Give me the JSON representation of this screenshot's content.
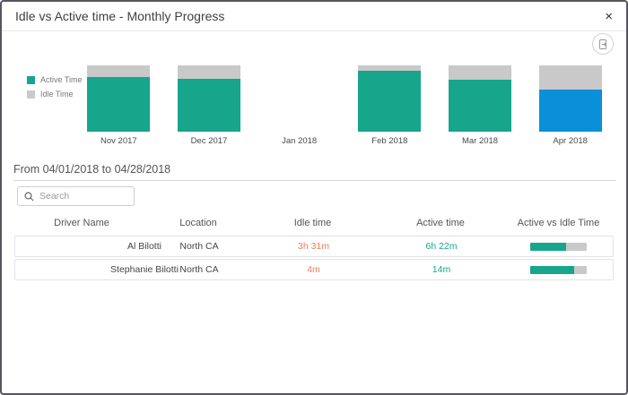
{
  "header": {
    "title": "Idle vs Active time - Monthly Progress",
    "close_label": "×"
  },
  "toolbar": {
    "export_icon": "export-report-icon"
  },
  "chart_data": {
    "type": "bar",
    "stacked": true,
    "title": "",
    "categories": [
      "Nov 2017",
      "Dec 2017",
      "Jan 2018",
      "Feb 2018",
      "Mar 2018",
      "Apr 2018"
    ],
    "series": [
      {
        "name": "Active Time",
        "color": "#17a58c",
        "values_pct": [
          82,
          80,
          null,
          92,
          78,
          64
        ]
      },
      {
        "name": "Idle Time",
        "color": "#c9c9c9",
        "values_pct": [
          18,
          20,
          null,
          8,
          22,
          36
        ]
      }
    ],
    "selected_category": "Apr 2018",
    "selected_color": "#0a90d9",
    "legend_position": "left",
    "ylim": [
      0,
      100
    ],
    "axes_hidden": true
  },
  "filter": {
    "date_range_label": "From 04/01/2018 to 04/28/2018"
  },
  "search": {
    "placeholder": "Search"
  },
  "table": {
    "columns": [
      "Driver Name",
      "Location",
      "Idle time",
      "Active time",
      "Active vs Idle Time"
    ],
    "rows": [
      {
        "driver": "Al Bilotti",
        "location": "North CA",
        "idle": "3h 31m",
        "active": "6h 22m",
        "active_pct": 64
      },
      {
        "driver": "Stephanie Bilotti",
        "location": "North CA",
        "idle": "4m",
        "active": "14m",
        "active_pct": 78
      }
    ]
  },
  "colors": {
    "active_teal": "#17a58c",
    "idle_gray": "#c9c9c9",
    "selected_blue": "#0a90d9",
    "idle_text_orange": "#e8825a",
    "dialog_border": "#57555f"
  }
}
